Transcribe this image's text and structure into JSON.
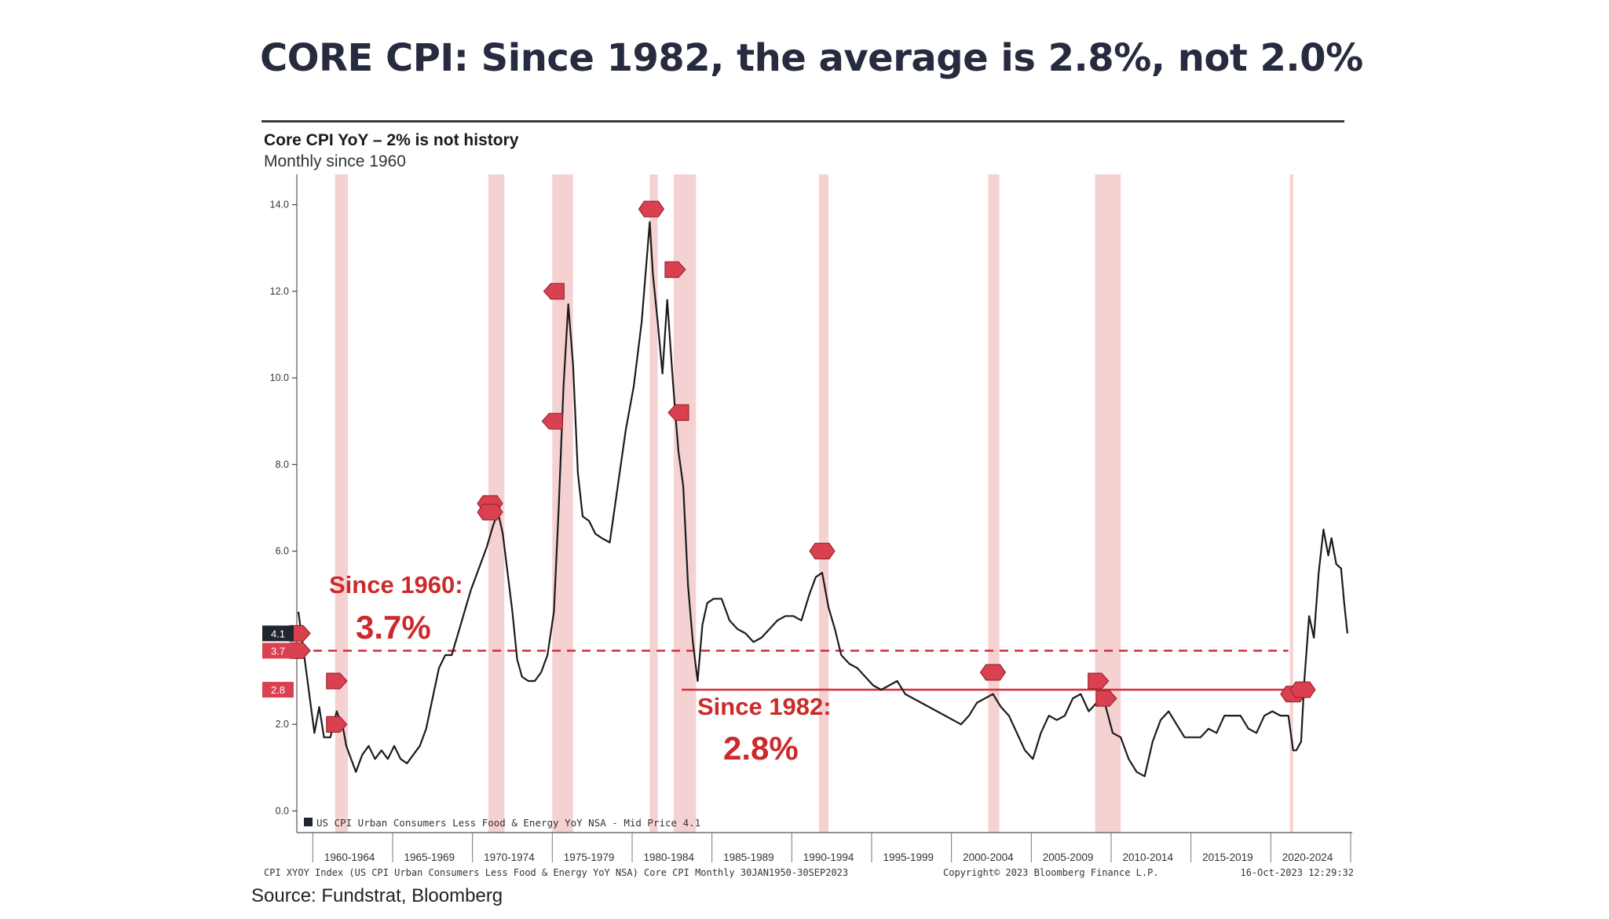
{
  "headline": "CORE CPI: Since 1982, the average is 2.8%, not 2.0%",
  "source": "Source: Fundstrat, Bloomberg",
  "colors": {
    "line": "#1b1b1b",
    "recession": "#f3c9c9",
    "avg": "#d8343f",
    "annotation": "#cc2a2a",
    "marker": "#d94050",
    "last_label_bg": "#1f2630"
  },
  "chart_data": {
    "type": "line",
    "title": "Core CPI YoY – 2% is not history",
    "subtitle": "Monthly since 1960",
    "legend": "US CPI Urban Consumers Less Food & Energy YoY NSA - Mid Price 4.1",
    "footer_left": "CPI XYOY Index (US CPI Urban Consumers Less Food & Energy YoY NSA) Core CPI  Monthly 30JAN1950-30SEP2023",
    "footer_center": "Copyright© 2023 Bloomberg Finance L.P.",
    "footer_right": "16-Oct-2023 12:29:32",
    "xlim": [
      1957.9,
      2024.0
    ],
    "ylim": [
      -0.5,
      14.7
    ],
    "y_ticks": [
      "0.0",
      "2.0",
      "4.0",
      "6.0",
      "8.0",
      "10.0",
      "12.0",
      "14.0"
    ],
    "x_tick_labels": [
      "1960-1964",
      "1965-1969",
      "1970-1974",
      "1975-1979",
      "1980-1984",
      "1985-1989",
      "1990-1994",
      "1995-1999",
      "2000-2004",
      "2005-2009",
      "2010-2014",
      "2015-2019",
      "2020-2024"
    ],
    "x_tick_centers": [
      1961.2,
      1966.2,
      1971.2,
      1976.2,
      1981.2,
      1986.2,
      1991.2,
      1996.2,
      2001.2,
      2006.2,
      2011.2,
      2016.2,
      2021.2
    ],
    "recessions": [
      [
        1960.3,
        1961.1
      ],
      [
        1969.9,
        1970.9
      ],
      [
        1973.9,
        1975.2
      ],
      [
        1980.0,
        1980.5
      ],
      [
        1981.5,
        1982.9
      ],
      [
        1990.6,
        1991.2
      ],
      [
        2001.2,
        2001.9
      ],
      [
        2007.9,
        2009.5
      ],
      [
        2020.1,
        2020.3
      ]
    ],
    "series": [
      {
        "name": "US CPI Urban Consumers Less Food & Energy YoY NSA - Mid Price 4.1",
        "x": [
          1958.0,
          1958.5,
          1959.0,
          1959.3,
          1959.6,
          1960.0,
          1960.4,
          1960.8,
          1961.0,
          1961.3,
          1961.6,
          1962.0,
          1962.4,
          1962.8,
          1963.2,
          1963.6,
          1964.0,
          1964.4,
          1964.8,
          1965.2,
          1965.6,
          1966.0,
          1966.4,
          1966.8,
          1967.2,
          1967.6,
          1968.0,
          1968.4,
          1968.8,
          1969.3,
          1969.8,
          1970.2,
          1970.5,
          1970.8,
          1971.1,
          1971.4,
          1971.7,
          1972.0,
          1972.4,
          1972.8,
          1973.2,
          1973.6,
          1974.0,
          1974.3,
          1974.6,
          1974.9,
          1975.2,
          1975.5,
          1975.8,
          1976.2,
          1976.6,
          1977.0,
          1977.5,
          1978.0,
          1978.5,
          1979.0,
          1979.5,
          1980.0,
          1980.2,
          1980.5,
          1980.8,
          1981.1,
          1981.4,
          1981.6,
          1981.8,
          1982.1,
          1982.4,
          1982.7,
          1983.0,
          1983.3,
          1983.6,
          1984.0,
          1984.5,
          1985.0,
          1985.5,
          1986.0,
          1986.5,
          1987.0,
          1987.5,
          1988.0,
          1988.5,
          1989.0,
          1989.5,
          1990.0,
          1990.4,
          1990.8,
          1991.2,
          1991.6,
          1992.0,
          1992.5,
          1993.0,
          1993.5,
          1994.0,
          1994.5,
          1995.0,
          1995.5,
          1996.0,
          1996.5,
          1997.0,
          1997.5,
          1998.0,
          1998.5,
          1999.0,
          1999.5,
          2000.0,
          2000.5,
          2001.0,
          2001.5,
          2002.0,
          2002.5,
          2003.0,
          2003.5,
          2004.0,
          2004.5,
          2005.0,
          2005.5,
          2006.0,
          2006.5,
          2007.0,
          2007.5,
          2008.0,
          2008.5,
          2009.0,
          2009.5,
          2010.0,
          2010.5,
          2011.0,
          2011.5,
          2012.0,
          2012.5,
          2013.0,
          2013.5,
          2014.0,
          2014.5,
          2015.0,
          2015.5,
          2016.0,
          2016.5,
          2017.0,
          2017.5,
          2018.0,
          2018.5,
          2019.0,
          2019.5,
          2020.0,
          2020.3,
          2020.5,
          2020.8,
          2021.0,
          2021.3,
          2021.6,
          2021.9,
          2022.2,
          2022.5,
          2022.7,
          2023.0,
          2023.3,
          2023.5,
          2023.7
        ],
        "values": [
          4.6,
          3.2,
          1.8,
          2.4,
          1.7,
          1.7,
          2.3,
          1.9,
          1.5,
          1.2,
          0.9,
          1.3,
          1.5,
          1.2,
          1.4,
          1.2,
          1.5,
          1.2,
          1.1,
          1.3,
          1.5,
          1.9,
          2.6,
          3.3,
          3.6,
          3.6,
          4.1,
          4.6,
          5.1,
          5.6,
          6.1,
          6.6,
          6.9,
          6.4,
          5.5,
          4.6,
          3.5,
          3.1,
          3.0,
          3.0,
          3.2,
          3.6,
          4.6,
          7.0,
          9.8,
          11.7,
          10.3,
          7.8,
          6.8,
          6.7,
          6.4,
          6.3,
          6.2,
          7.5,
          8.8,
          9.8,
          11.3,
          13.6,
          12.4,
          11.3,
          10.1,
          11.8,
          10.2,
          9.2,
          8.3,
          7.5,
          5.2,
          3.9,
          3.0,
          4.3,
          4.8,
          4.9,
          4.9,
          4.4,
          4.2,
          4.1,
          3.9,
          4.0,
          4.2,
          4.4,
          4.5,
          4.5,
          4.4,
          5.0,
          5.4,
          5.5,
          4.7,
          4.2,
          3.6,
          3.4,
          3.3,
          3.1,
          2.9,
          2.8,
          2.9,
          3.0,
          2.7,
          2.6,
          2.5,
          2.4,
          2.3,
          2.2,
          2.1,
          2.0,
          2.2,
          2.5,
          2.6,
          2.7,
          2.4,
          2.2,
          1.8,
          1.4,
          1.2,
          1.8,
          2.2,
          2.1,
          2.2,
          2.6,
          2.7,
          2.3,
          2.5,
          2.5,
          1.8,
          1.7,
          1.2,
          0.9,
          0.8,
          1.6,
          2.1,
          2.3,
          2.0,
          1.7,
          1.7,
          1.7,
          1.9,
          1.8,
          2.2,
          2.2,
          2.2,
          1.9,
          1.8,
          2.2,
          2.3,
          2.2,
          2.2,
          1.4,
          1.4,
          1.6,
          3.0,
          4.5,
          4.0,
          5.5,
          6.5,
          5.9,
          6.3,
          5.7,
          5.6,
          4.8,
          4.1
        ]
      }
    ],
    "averages": [
      {
        "label_line1": "Since 1960:",
        "label_line2": "3.7%",
        "value": 3.7,
        "from": 1958.0,
        "to": 2020.0,
        "style": "dashed"
      },
      {
        "label_line1": "Since 1982:",
        "label_line2": "2.8%",
        "value": 2.8,
        "from": 1982.0,
        "to": 2020.2,
        "style": "solid"
      }
    ],
    "axis_value_labels": [
      {
        "text": "4.1",
        "value": 4.1,
        "style": "dark"
      },
      {
        "text": "3.7",
        "value": 3.7,
        "style": "red"
      },
      {
        "text": "2.8",
        "value": 2.8,
        "style": "red"
      }
    ],
    "markers": [
      {
        "x": 1958.1,
        "y": 4.1,
        "shape": "right"
      },
      {
        "x": 1958.1,
        "y": 3.7,
        "shape": "right"
      },
      {
        "x": 1960.4,
        "y": 3.0,
        "shape": "right"
      },
      {
        "x": 1960.4,
        "y": 2.0,
        "shape": "right"
      },
      {
        "x": 1970.0,
        "y": 7.1,
        "shape": "hex"
      },
      {
        "x": 1970.0,
        "y": 6.9,
        "shape": "hex"
      },
      {
        "x": 1974.0,
        "y": 12.0,
        "shape": "left"
      },
      {
        "x": 1973.9,
        "y": 9.0,
        "shape": "left"
      },
      {
        "x": 1980.1,
        "y": 13.9,
        "shape": "hex"
      },
      {
        "x": 1981.6,
        "y": 12.5,
        "shape": "right"
      },
      {
        "x": 1981.8,
        "y": 9.2,
        "shape": "left"
      },
      {
        "x": 1990.8,
        "y": 6.0,
        "shape": "hex"
      },
      {
        "x": 2001.5,
        "y": 3.2,
        "shape": "hex"
      },
      {
        "x": 2008.1,
        "y": 3.0,
        "shape": "right"
      },
      {
        "x": 2008.6,
        "y": 2.6,
        "shape": "right"
      },
      {
        "x": 2020.3,
        "y": 2.7,
        "shape": "hex"
      },
      {
        "x": 2020.9,
        "y": 2.8,
        "shape": "hex"
      }
    ]
  }
}
